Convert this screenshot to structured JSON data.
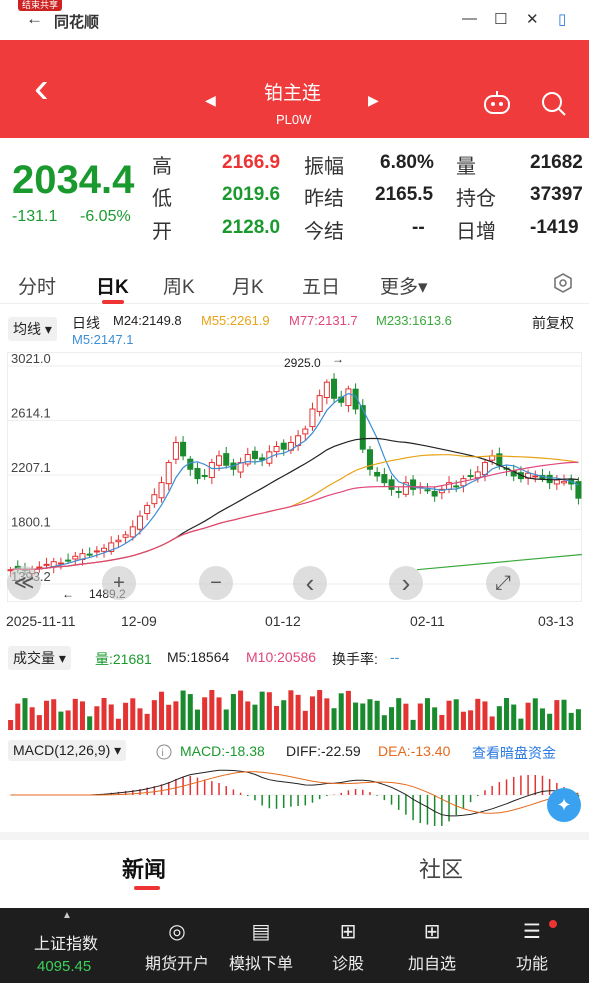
{
  "window": {
    "share_badge": "结束共享",
    "back": "←",
    "title": "同花顺",
    "min": "—",
    "max": "☐",
    "close": "✕",
    "panel": "▯"
  },
  "header": {
    "back": "‹",
    "prev": "◀",
    "next": "▶",
    "name": "铂主连",
    "code": "PL0W"
  },
  "quote": {
    "price": "2034.4",
    "change": "-131.1",
    "change_pct": "-6.05%",
    "high_label": "高",
    "high": "2166.9",
    "low_label": "低",
    "low": "2019.6",
    "open_label": "开",
    "open": "2128.0",
    "amp_label": "振幅",
    "amp": "6.80%",
    "prev_settle_label": "昨结",
    "prev_settle": "2165.5",
    "settle_label": "今结",
    "settle": "--",
    "vol_label": "量",
    "vol": "21682",
    "oi_label": "持仓",
    "oi": "37397",
    "daily_inc_label": "日增",
    "daily_inc": "-1419"
  },
  "tabs": [
    "分时",
    "日K",
    "周K",
    "月K",
    "五日",
    "更多▾"
  ],
  "kinfo": {
    "ma_chip": "均线 ▾",
    "period": "日线",
    "ma24": "M24:2149.8",
    "ma55": "M55:2261.9",
    "ma77": "M77:2131.7",
    "ma233": "M233:1613.6",
    "ma5": "M5:2147.1",
    "adjust": "前复权"
  },
  "colors": {
    "up": "#e33333",
    "down": "#1a8a2e",
    "ma5": "#3b8ed4",
    "ma24": "#222222",
    "ma55": "#e8a317",
    "ma77": "#e0457b",
    "ma233": "#3aa83a"
  },
  "chart_data": {
    "type": "candlestick",
    "y_ticks": [
      "3021.0",
      "2614.1",
      "2207.1",
      "1800.1",
      "1393.2"
    ],
    "ylim": [
      1393.2,
      3021.0
    ],
    "x_ticks": [
      "2025-11-11",
      "12-09",
      "01-12",
      "02-11",
      "03-13"
    ],
    "high_marker": "2925.0",
    "low_marker": "1489.2",
    "closes": [
      1500,
      1510,
      1495,
      1505,
      1520,
      1540,
      1560,
      1550,
      1570,
      1600,
      1620,
      1610,
      1640,
      1660,
      1700,
      1720,
      1760,
      1820,
      1900,
      1980,
      2060,
      2150,
      2300,
      2450,
      2350,
      2250,
      2180,
      2200,
      2300,
      2350,
      2280,
      2250,
      2300,
      2360,
      2330,
      2320,
      2380,
      2420,
      2400,
      2450,
      2500,
      2550,
      2700,
      2800,
      2900,
      2780,
      2750,
      2850,
      2700,
      2400,
      2250,
      2200,
      2150,
      2100,
      2080,
      2150,
      2100,
      2120,
      2090,
      2050,
      2100,
      2150,
      2120,
      2180,
      2200,
      2230,
      2300,
      2350,
      2280,
      2250,
      2200,
      2180,
      2220,
      2200,
      2180,
      2150,
      2170,
      2160,
      2140,
      2034
    ]
  },
  "controls": {
    "first": "≪",
    "zoom_in": "+",
    "zoom_out": "−",
    "prev": "‹",
    "next": "›",
    "fullscreen": "⤢"
  },
  "volume": {
    "chip": "成交量 ▾",
    "vol": "量:21681",
    "m5": "M5:18564",
    "m10": "M10:20586",
    "turnover_label": "换手率:",
    "turnover": "--"
  },
  "macd": {
    "chip": "MACD(12,26,9) ▾",
    "macd": "MACD:-18.38",
    "diff": "DIFF:-22.59",
    "dea": "DEA:-13.40",
    "link": "查看暗盘资金"
  },
  "news_tabs": [
    "新闻",
    "社区"
  ],
  "bottom": {
    "index_name": "上证指数",
    "index_value": "4095.45",
    "items": [
      "期货开户",
      "模拟下单",
      "诊股",
      "加自选",
      "功能"
    ]
  }
}
